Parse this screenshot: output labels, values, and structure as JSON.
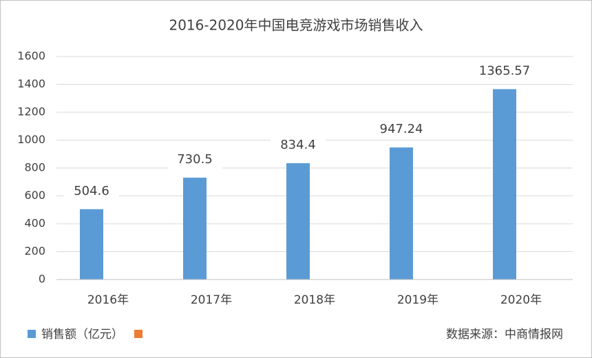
{
  "chart_data": {
    "type": "bar",
    "title": "2016-2020年中国电竞游戏市场销售收入",
    "categories": [
      "2016年",
      "2017年",
      "2018年",
      "2019年",
      "2020年"
    ],
    "series": [
      {
        "name": "销售额（亿元）",
        "color": "#5b9bd5",
        "values": [
          504.6,
          730.5,
          834.4,
          947.24,
          1365.57
        ]
      },
      {
        "name": null,
        "color": "#ed7d31",
        "values": [
          null,
          null,
          null,
          null,
          null
        ]
      }
    ],
    "ylim": [
      0,
      1600
    ],
    "yticks": [
      0,
      200,
      400,
      600,
      800,
      1000,
      1200,
      1400,
      1600
    ],
    "grid": true,
    "legend": "bottom-left",
    "source": "数据来源：中商情报网"
  }
}
